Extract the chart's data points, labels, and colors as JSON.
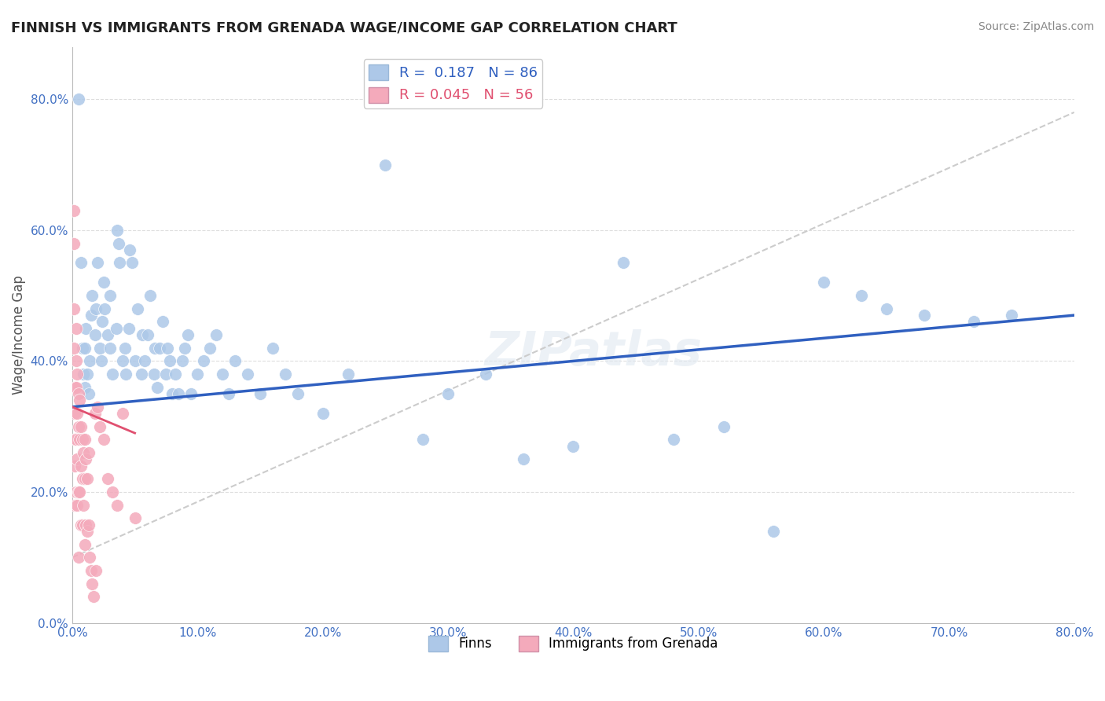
{
  "title": "FINNISH VS IMMIGRANTS FROM GRENADA WAGE/INCOME GAP CORRELATION CHART",
  "source": "Source: ZipAtlas.com",
  "xlabel": "",
  "ylabel": "Wage/Income Gap",
  "xlim": [
    0.0,
    0.8
  ],
  "ylim": [
    0.0,
    0.88
  ],
  "xticks": [
    0.0,
    0.1,
    0.2,
    0.3,
    0.4,
    0.5,
    0.6,
    0.7,
    0.8
  ],
  "yticks": [
    0.0,
    0.2,
    0.4,
    0.6,
    0.8
  ],
  "legend_r_blue": "0.187",
  "legend_n_blue": "86",
  "legend_r_pink": "0.045",
  "legend_n_pink": "56",
  "blue_color": "#adc8e8",
  "pink_color": "#f4aabb",
  "blue_line_color": "#3060c0",
  "pink_line_color": "#e05070",
  "watermark_text": "ZIPatlas",
  "blue_scatter_x": [
    0.005,
    0.007,
    0.008,
    0.009,
    0.01,
    0.01,
    0.011,
    0.012,
    0.013,
    0.014,
    0.015,
    0.016,
    0.018,
    0.019,
    0.02,
    0.022,
    0.023,
    0.024,
    0.025,
    0.026,
    0.028,
    0.03,
    0.03,
    0.032,
    0.035,
    0.036,
    0.037,
    0.038,
    0.04,
    0.042,
    0.043,
    0.045,
    0.046,
    0.048,
    0.05,
    0.052,
    0.055,
    0.056,
    0.058,
    0.06,
    0.062,
    0.065,
    0.066,
    0.068,
    0.07,
    0.072,
    0.075,
    0.076,
    0.078,
    0.08,
    0.082,
    0.085,
    0.088,
    0.09,
    0.092,
    0.095,
    0.1,
    0.105,
    0.11,
    0.115,
    0.12,
    0.125,
    0.13,
    0.14,
    0.15,
    0.16,
    0.17,
    0.18,
    0.2,
    0.22,
    0.25,
    0.28,
    0.3,
    0.33,
    0.36,
    0.4,
    0.44,
    0.48,
    0.52,
    0.56,
    0.6,
    0.63,
    0.65,
    0.68,
    0.72,
    0.75
  ],
  "blue_scatter_y": [
    0.8,
    0.55,
    0.42,
    0.38,
    0.36,
    0.42,
    0.45,
    0.38,
    0.35,
    0.4,
    0.47,
    0.5,
    0.44,
    0.48,
    0.55,
    0.42,
    0.4,
    0.46,
    0.52,
    0.48,
    0.44,
    0.5,
    0.42,
    0.38,
    0.45,
    0.6,
    0.58,
    0.55,
    0.4,
    0.42,
    0.38,
    0.45,
    0.57,
    0.55,
    0.4,
    0.48,
    0.38,
    0.44,
    0.4,
    0.44,
    0.5,
    0.38,
    0.42,
    0.36,
    0.42,
    0.46,
    0.38,
    0.42,
    0.4,
    0.35,
    0.38,
    0.35,
    0.4,
    0.42,
    0.44,
    0.35,
    0.38,
    0.4,
    0.42,
    0.44,
    0.38,
    0.35,
    0.4,
    0.38,
    0.35,
    0.42,
    0.38,
    0.35,
    0.32,
    0.38,
    0.7,
    0.28,
    0.35,
    0.38,
    0.25,
    0.27,
    0.55,
    0.28,
    0.3,
    0.14,
    0.52,
    0.5,
    0.48,
    0.47,
    0.46,
    0.47
  ],
  "pink_scatter_x": [
    0.001,
    0.001,
    0.001,
    0.001,
    0.002,
    0.002,
    0.002,
    0.002,
    0.002,
    0.003,
    0.003,
    0.003,
    0.003,
    0.003,
    0.004,
    0.004,
    0.004,
    0.004,
    0.005,
    0.005,
    0.005,
    0.005,
    0.006,
    0.006,
    0.006,
    0.007,
    0.007,
    0.007,
    0.008,
    0.008,
    0.008,
    0.009,
    0.009,
    0.01,
    0.01,
    0.01,
    0.011,
    0.011,
    0.012,
    0.012,
    0.013,
    0.013,
    0.014,
    0.015,
    0.016,
    0.017,
    0.018,
    0.019,
    0.02,
    0.022,
    0.025,
    0.028,
    0.032,
    0.036,
    0.04,
    0.05
  ],
  "pink_scatter_y": [
    0.63,
    0.58,
    0.48,
    0.42,
    0.36,
    0.32,
    0.28,
    0.24,
    0.18,
    0.45,
    0.4,
    0.36,
    0.28,
    0.2,
    0.38,
    0.32,
    0.25,
    0.18,
    0.35,
    0.3,
    0.2,
    0.1,
    0.34,
    0.28,
    0.2,
    0.3,
    0.24,
    0.15,
    0.28,
    0.22,
    0.15,
    0.26,
    0.18,
    0.28,
    0.22,
    0.12,
    0.25,
    0.15,
    0.22,
    0.14,
    0.26,
    0.15,
    0.1,
    0.08,
    0.06,
    0.04,
    0.32,
    0.08,
    0.33,
    0.3,
    0.28,
    0.22,
    0.2,
    0.18,
    0.32,
    0.16
  ],
  "blue_trendline_x": [
    0.0,
    0.8
  ],
  "blue_trendline_y": [
    0.33,
    0.47
  ],
  "pink_trendline_x": [
    0.0,
    0.05
  ],
  "pink_trendline_y": [
    0.33,
    0.29
  ],
  "dash_trendline_x": [
    0.0,
    0.8
  ],
  "dash_trendline_y": [
    0.1,
    0.78
  ]
}
